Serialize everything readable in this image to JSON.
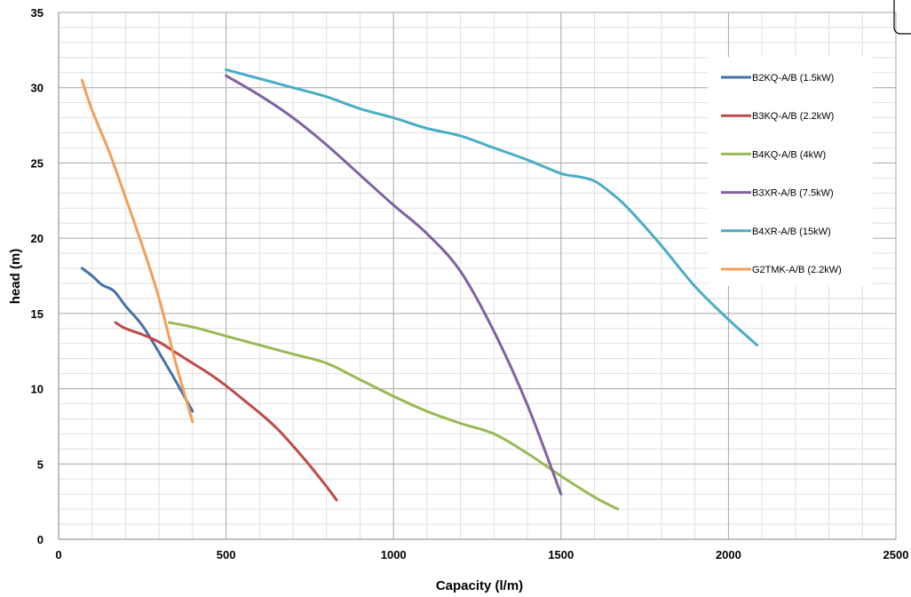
{
  "chart_data": {
    "type": "line",
    "title": "",
    "xlabel": "Capacity  (l/m)",
    "ylabel": "head (m)",
    "xlim": [
      0,
      2500
    ],
    "ylim": [
      0,
      35
    ],
    "x_ticks": [
      0,
      500,
      1000,
      1500,
      2000,
      2500
    ],
    "y_ticks": [
      0,
      5,
      10,
      15,
      20,
      25,
      30,
      35
    ],
    "x_minor_step": 100,
    "y_minor_step": 1,
    "grid": true,
    "legend_position": "right",
    "series": [
      {
        "name": "B2KQ-A/B (1.5kW)",
        "color": "#4472A8",
        "x": [
          70,
          100,
          130,
          165,
          200,
          250,
          300,
          350,
          400
        ],
        "y": [
          18,
          17.5,
          16.9,
          16.5,
          15.5,
          14.2,
          12.4,
          10.5,
          8.5
        ]
      },
      {
        "name": "B3KQ-A/B (2.2kW)",
        "color": "#BE4B48",
        "x": [
          170,
          200,
          250,
          300,
          350,
          400,
          450,
          500,
          550,
          600,
          650,
          700,
          750,
          800,
          830
        ],
        "y": [
          14.4,
          14.0,
          13.6,
          13.1,
          12.4,
          11.7,
          11.0,
          10.2,
          9.3,
          8.4,
          7.4,
          6.2,
          4.9,
          3.5,
          2.6
        ]
      },
      {
        "name": "B4KQ-A/B (4kW)",
        "color": "#98B954",
        "x": [
          330,
          400,
          500,
          600,
          700,
          800,
          900,
          1000,
          1100,
          1200,
          1300,
          1400,
          1500,
          1600,
          1670
        ],
        "y": [
          14.4,
          14.1,
          13.5,
          12.9,
          12.3,
          11.7,
          10.6,
          9.5,
          8.5,
          7.7,
          7.0,
          5.7,
          4.2,
          2.8,
          2.0
        ]
      },
      {
        "name": "B3XR-A/B (7.5kW)",
        "color": "#7E62A1",
        "x": [
          500,
          600,
          700,
          800,
          900,
          1000,
          1100,
          1200,
          1300,
          1400,
          1500
        ],
        "y": [
          30.8,
          29.5,
          28.0,
          26.2,
          24.2,
          22.2,
          20.3,
          17.8,
          13.8,
          8.9,
          3.0
        ]
      },
      {
        "name": "B4XR-A/B (15kW)",
        "color": "#4BACC6",
        "x": [
          500,
          600,
          700,
          800,
          900,
          1000,
          1100,
          1200,
          1300,
          1400,
          1500,
          1550,
          1600,
          1650,
          1700,
          1800,
          1900,
          2000,
          2085
        ],
        "y": [
          31.2,
          30.6,
          30.0,
          29.4,
          28.6,
          28.0,
          27.3,
          26.8,
          26.0,
          25.2,
          24.3,
          24.1,
          23.8,
          23.0,
          22.0,
          19.5,
          16.8,
          14.6,
          12.9
        ]
      },
      {
        "name": "G2TMK-A/B (2.2kW)",
        "color": "#F59D56",
        "x": [
          70,
          100,
          150,
          200,
          250,
          300,
          350,
          400
        ],
        "y": [
          30.5,
          28.5,
          25.8,
          22.7,
          19.5,
          16.0,
          11.7,
          7.8
        ]
      }
    ]
  }
}
